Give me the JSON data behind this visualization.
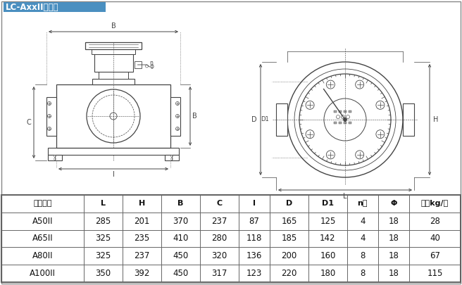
{
  "title": "LC-AxxII型轻型",
  "title_bg": "#4a8fc0",
  "title_color": "#ffffff",
  "bg_color": "#ffffff",
  "table_headers": [
    "公称通径",
    "L",
    "H",
    "B",
    "C",
    "I",
    "D",
    "D1",
    "n个",
    "Φ",
    "重量kg/台"
  ],
  "table_rows": [
    [
      "A50II",
      "285",
      "201",
      "370",
      "237",
      "87",
      "165",
      "125",
      "4",
      "18",
      "28"
    ],
    [
      "A65II",
      "325",
      "235",
      "410",
      "280",
      "118",
      "185",
      "142",
      "4",
      "18",
      "40"
    ],
    [
      "A80II",
      "325",
      "237",
      "450",
      "320",
      "136",
      "200",
      "160",
      "8",
      "18",
      "67"
    ],
    [
      "A100II",
      "350",
      "392",
      "450",
      "317",
      "123",
      "220",
      "180",
      "8",
      "18",
      "115"
    ]
  ],
  "line_color": "#444444",
  "dim_color": "#444444",
  "table_line_color": "#666666",
  "col_widths_ratio": [
    1.6,
    0.75,
    0.75,
    0.75,
    0.75,
    0.6,
    0.75,
    0.75,
    0.6,
    0.6,
    1.0
  ]
}
